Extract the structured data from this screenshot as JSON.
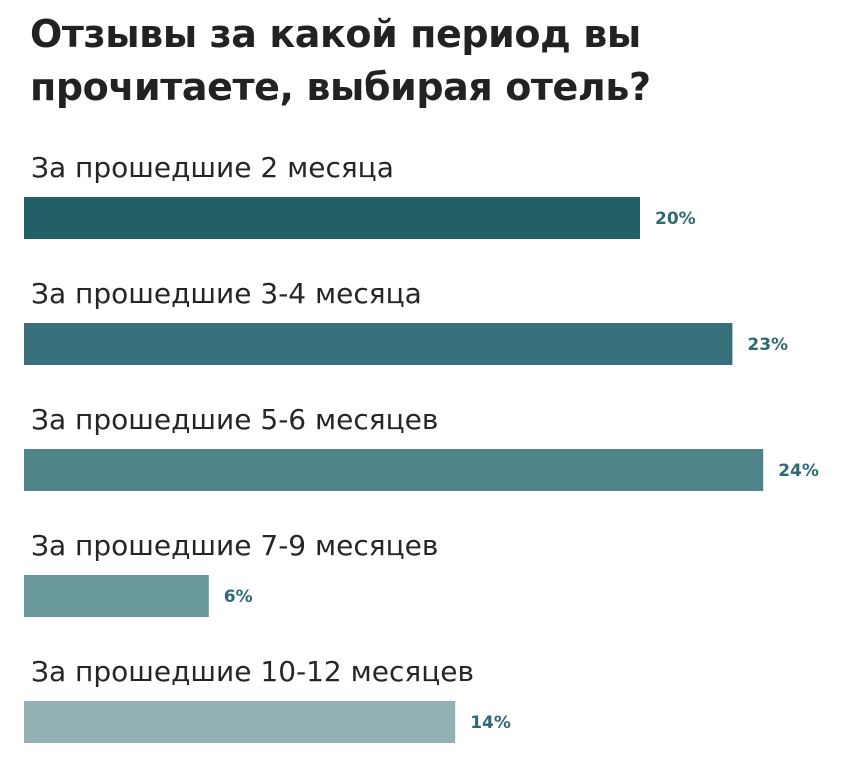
{
  "chart_data": {
    "type": "bar",
    "orientation": "horizontal",
    "title": "Отзывы за какой период вы прочитаете, выбирая отель?",
    "categories": [
      "За прошедшие 2 месяца",
      "За прошедшие 3-4 месяца",
      "За прошедшие 5-6 месяцев",
      "За прошедшие 7-9 месяцев",
      "За прошедшие 10-12 месяцев"
    ],
    "values": [
      20,
      23,
      24,
      6,
      14
    ],
    "value_labels": [
      "20%",
      "23%",
      "24%",
      "6%",
      "14%"
    ],
    "unit": "%",
    "xlim": [
      0,
      24
    ],
    "grid": false,
    "legend": "none",
    "bar_colors": [
      "#235f67",
      "#37707a",
      "#4f8489",
      "#68979c",
      "#92b1b5"
    ],
    "label_color": "#2f6a74"
  }
}
